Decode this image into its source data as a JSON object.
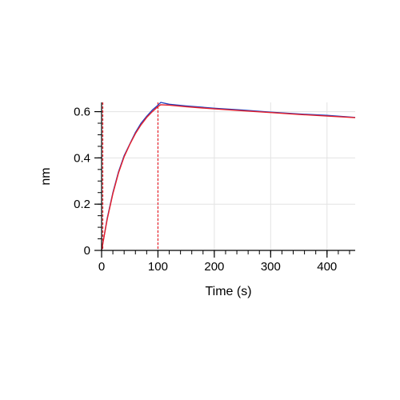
{
  "chart_data": {
    "type": "line",
    "title": "",
    "xlabel": "Time (s)",
    "ylabel": "nm",
    "xlim": [
      0,
      450
    ],
    "ylim": [
      0,
      0.64
    ],
    "x_ticks": [
      0,
      100,
      200,
      300,
      400
    ],
    "y_ticks": [
      0,
      0.2,
      0.4,
      0.6
    ],
    "grid": true,
    "legend": "none",
    "vertical_markers": [
      0,
      100
    ],
    "series": [
      {
        "color": "#1f3fbf",
        "x": [
          0,
          5,
          10,
          20,
          30,
          40,
          50,
          60,
          70,
          80,
          90,
          100,
          105,
          120,
          150,
          200,
          250,
          300,
          350,
          400,
          450
        ],
        "y": [
          0.0,
          0.07,
          0.14,
          0.25,
          0.34,
          0.41,
          0.46,
          0.51,
          0.55,
          0.58,
          0.607,
          0.628,
          0.64,
          0.632,
          0.625,
          0.615,
          0.607,
          0.598,
          0.59,
          0.584,
          0.575
        ]
      },
      {
        "color": "#e8202a",
        "x": [
          0,
          5,
          10,
          20,
          30,
          40,
          50,
          60,
          70,
          80,
          90,
          100,
          105,
          120,
          150,
          200,
          250,
          300,
          350,
          400,
          450
        ],
        "y": [
          0.0,
          0.068,
          0.135,
          0.245,
          0.335,
          0.405,
          0.458,
          0.505,
          0.543,
          0.575,
          0.6,
          0.622,
          0.63,
          0.628,
          0.621,
          0.612,
          0.604,
          0.596,
          0.588,
          0.581,
          0.574
        ]
      }
    ]
  },
  "colors": {
    "fit": "#e8202a",
    "data": "#1f3fbf",
    "grid": "#e3e3e3",
    "axis": "#000000",
    "marker": "#e8202a"
  }
}
